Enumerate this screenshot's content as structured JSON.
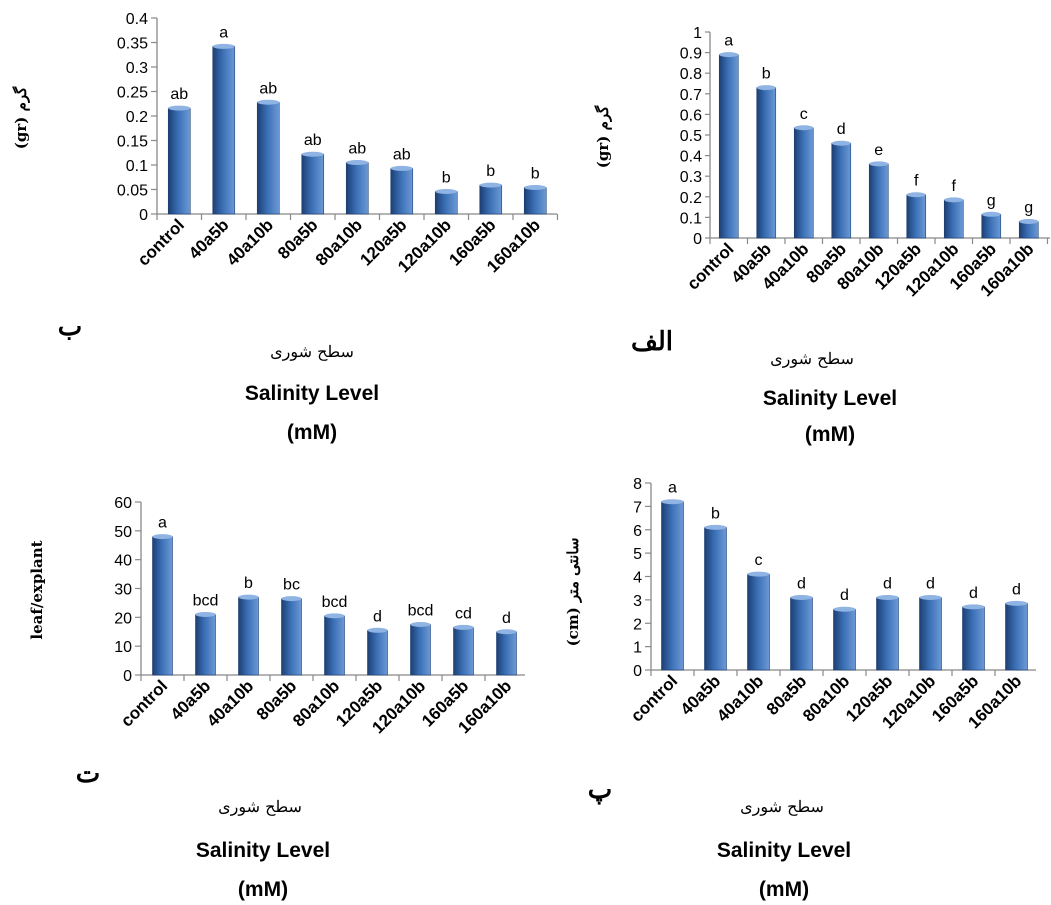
{
  "chart_data": [
    {
      "id": "p1",
      "type": "bar",
      "panel_label": "ب",
      "ylabel": "گرم (gr)",
      "xlabel_fa": "سطح شوری",
      "xlabel_en": "Salinity Level",
      "xlabel_unit": "(mM)",
      "ylim": [
        0,
        0.4
      ],
      "yticks": [
        "0",
        "0.05",
        "0.1",
        "0.15",
        "0.2",
        "0.25",
        "0.3",
        "0.35",
        "0.4"
      ],
      "categories": [
        "control",
        "40a5b",
        "40a10b",
        "80a5b",
        "80a10b",
        "120a5b",
        "120a10b",
        "160a5b",
        "160a10b"
      ],
      "values": [
        0.216,
        0.342,
        0.228,
        0.122,
        0.105,
        0.093,
        0.046,
        0.059,
        0.054
      ],
      "letters": [
        "ab",
        "a",
        "ab",
        "ab",
        "ab",
        "ab",
        "b",
        "b",
        "b"
      ],
      "bar_color": "#3a6fb5"
    },
    {
      "id": "p2",
      "type": "bar",
      "panel_label": "الف",
      "ylabel": "گرم (gr)",
      "xlabel_fa": "سطح شوری",
      "xlabel_en": "Salinity Level",
      "xlabel_unit": "(mM)",
      "ylim": [
        0,
        1
      ],
      "yticks": [
        "0",
        "0.1",
        "0.2",
        "0.3",
        "0.4",
        "0.5",
        "0.6",
        "0.7",
        "0.8",
        "0.9",
        "1"
      ],
      "categories": [
        "control",
        "40a5b",
        "40a10b",
        "80a5b",
        "80a10b",
        "120a5b",
        "120a10b",
        "160a5b",
        "160a10b"
      ],
      "values": [
        0.89,
        0.73,
        0.535,
        0.46,
        0.36,
        0.21,
        0.185,
        0.115,
        0.08
      ],
      "letters": [
        "a",
        "b",
        "c",
        "d",
        "e",
        "f",
        "f",
        "g",
        "g"
      ],
      "bar_color": "#3a6fb5"
    },
    {
      "id": "p3",
      "type": "bar",
      "panel_label": "ت",
      "ylabel": "leaf/explant",
      "xlabel_fa": "سطح شوری",
      "xlabel_en": "Salinity Level",
      "xlabel_unit": "(mM)",
      "ylim": [
        0,
        60
      ],
      "yticks": [
        "0",
        "10",
        "20",
        "30",
        "40",
        "50",
        "60"
      ],
      "categories": [
        "control",
        "40a5b",
        "40a10b",
        "80a5b",
        "80a10b",
        "120a5b",
        "120a10b",
        "160a5b",
        "160a10b"
      ],
      "values": [
        48,
        21,
        27,
        26.5,
        20.5,
        15.5,
        17.5,
        16.5,
        15
      ],
      "letters": [
        "a",
        "bcd",
        "b",
        "bc",
        "bcd",
        "d",
        "bcd",
        "cd",
        "d"
      ],
      "bar_color": "#3a6fb5"
    },
    {
      "id": "p4",
      "type": "bar",
      "panel_label": "پ",
      "ylabel": "سانتی متر (cm)",
      "xlabel_fa": "سطح شوری",
      "xlabel_en": "Salinity Level",
      "xlabel_unit": "(mM)",
      "ylim": [
        0,
        8
      ],
      "yticks": [
        "0",
        "1",
        "2",
        "3",
        "4",
        "5",
        "6",
        "7",
        "8"
      ],
      "categories": [
        "control",
        "40a5b",
        "40a10b",
        "80a5b",
        "80a10b",
        "120a5b",
        "120a10b",
        "160a5b",
        "160a10b"
      ],
      "values": [
        7.2,
        6.1,
        4.1,
        3.1,
        2.6,
        3.1,
        3.1,
        2.7,
        2.85
      ],
      "letters": [
        "a",
        "b",
        "c",
        "d",
        "d",
        "d",
        "d",
        "d",
        "d"
      ],
      "bar_color": "#3a6fb5"
    }
  ]
}
